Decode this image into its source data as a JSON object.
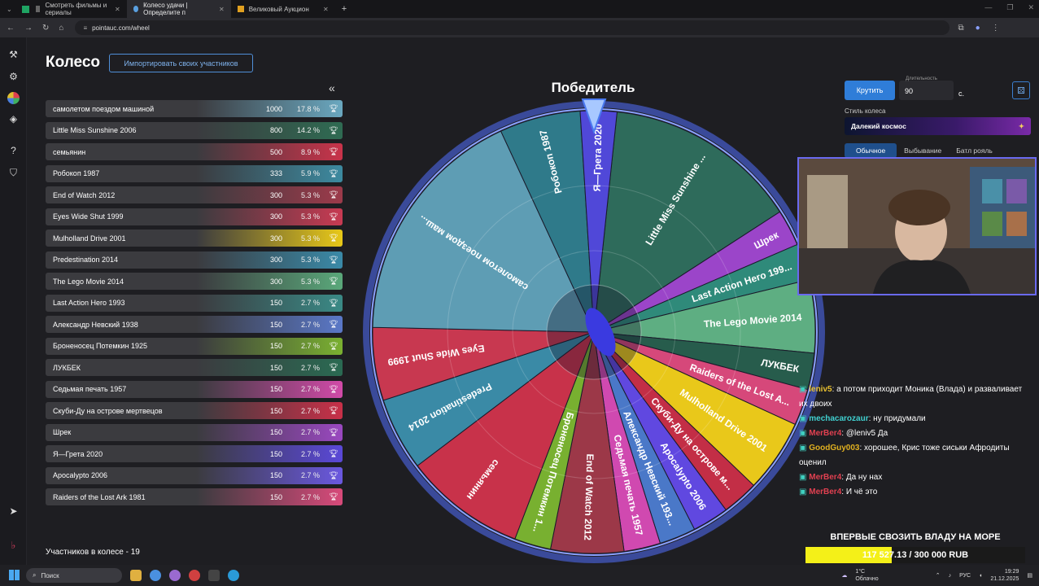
{
  "browser": {
    "tabs": [
      {
        "label": "Смотреть фильмы и сериалы"
      },
      {
        "label": "Колесо удачи | Определите п"
      },
      {
        "label": "Великовый Аукцион"
      }
    ],
    "url": "pointauc.com/wheel"
  },
  "page": {
    "title": "Колесо",
    "import_label": "Импортировать своих участников",
    "collapse_icon": "«",
    "participants_count": "Участников в колесе - 19"
  },
  "participants": [
    {
      "name": "самолетом поездом машиной",
      "amount": "1000",
      "pct": "17.8 %",
      "color": "#6aa8c0"
    },
    {
      "name": "Little Miss Sunshine 2006",
      "amount": "800",
      "pct": "14.2 %",
      "color": "#2f6b52"
    },
    {
      "name": "семьянин",
      "amount": "500",
      "pct": "8.9 %",
      "color": "#c9334a"
    },
    {
      "name": "Робокоп 1987",
      "amount": "333",
      "pct": "5.9 %",
      "color": "#3c8aa0"
    },
    {
      "name": "End of Watch 2012",
      "amount": "300",
      "pct": "5.3 %",
      "color": "#9c3a4a"
    },
    {
      "name": "Eyes Wide Shut 1999",
      "amount": "300",
      "pct": "5.3 %",
      "color": "#c83a52"
    },
    {
      "name": "Mulholland Drive 2001",
      "amount": "300",
      "pct": "5.3 %",
      "color": "#e8c818"
    },
    {
      "name": "Predestination 2014",
      "amount": "300",
      "pct": "5.3 %",
      "color": "#3a8aa8"
    },
    {
      "name": "The Lego Movie 2014",
      "amount": "300",
      "pct": "5.3 %",
      "color": "#5aa87a"
    },
    {
      "name": "Last Action Hero 1993",
      "amount": "150",
      "pct": "2.7 %",
      "color": "#3a8a86"
    },
    {
      "name": "Александр Невский 1938",
      "amount": "150",
      "pct": "2.7 %",
      "color": "#5a78c8"
    },
    {
      "name": "Броненосец Потемкин 1925",
      "amount": "150",
      "pct": "2.7 %",
      "color": "#7ab030"
    },
    {
      "name": "ЛУКБЕК",
      "amount": "150",
      "pct": "2.7 %",
      "color": "#2a6a52"
    },
    {
      "name": "Седьмая печать 1957",
      "amount": "150",
      "pct": "2.7 %",
      "color": "#d24aa8"
    },
    {
      "name": "Скуби-Ду на острове мертвецов",
      "amount": "150",
      "pct": "2.7 %",
      "color": "#c83048"
    },
    {
      "name": "Шрек",
      "amount": "150",
      "pct": "2.7 %",
      "color": "#9a48c0"
    },
    {
      "name": "Я—Грета 2020",
      "amount": "150",
      "pct": "2.7 %",
      "color": "#5a48d8"
    },
    {
      "name": "Apocalypto 2006",
      "amount": "150",
      "pct": "2.7 %",
      "color": "#6a58e0"
    },
    {
      "name": "Raiders of the Lost Ark 1981",
      "amount": "150",
      "pct": "2.7 %",
      "color": "#d84a7a"
    }
  ],
  "wheel": {
    "title": "Победитель",
    "slices": [
      {
        "label": "Little Miss Sunshine ...",
        "color": "#2e6b5b"
      },
      {
        "label": "Шрек",
        "color": "#9b45c9"
      },
      {
        "label": "Last Action Hero 199...",
        "color": "#2f8a7a"
      },
      {
        "label": "The Lego Movie 2014",
        "color": "#5eae82"
      },
      {
        "label": "ЛУКБЕК",
        "color": "#275c4c"
      },
      {
        "label": "Raiders of the Lost A...",
        "color": "#d6487a"
      },
      {
        "label": "Mulholland Drive 2001",
        "color": "#e9c81a"
      },
      {
        "label": "Скуби-Ду на острове м...",
        "color": "#c32e46"
      },
      {
        "label": "Apocalypto 2006",
        "color": "#6048e0"
      },
      {
        "label": "Александр Невский 193...",
        "color": "#4a78c8"
      },
      {
        "label": "Седьмая печать 1957",
        "color": "#d049b0"
      },
      {
        "label": "End of Watch 2012",
        "color": "#9c3848"
      },
      {
        "label": "Броненосец Потемкин 1...",
        "color": "#78b030"
      },
      {
        "label": "семьянин",
        "color": "#c8324a"
      },
      {
        "label": "Predestination 2014",
        "color": "#3a8aa6"
      },
      {
        "label": "Eyes Wide Shut 1999",
        "color": "#c83850"
      },
      {
        "label": "самолетом поездом маш...",
        "color": "#5e9db4"
      },
      {
        "label": "Робокоп 1987",
        "color": "#2f7a8a"
      },
      {
        "label": "Я—Грета 2020",
        "color": "#5048d8"
      }
    ]
  },
  "controls": {
    "spin_label": "Крутить",
    "duration_label": "Длительность",
    "duration_value": "90",
    "seconds": "с.",
    "style_label": "Стиль колеса",
    "style_value": "Далекий космос",
    "modes": [
      "Обычное",
      "Выбывание",
      "Батл рояль"
    ]
  },
  "chat": [
    {
      "user": "leniv5",
      "color": "#e8c030",
      "text": ": а потом приходит Моника (Влада) и разваливает их двоих"
    },
    {
      "user": "mechacarozaur",
      "color": "#40d0d0",
      "text": ": ну придумали"
    },
    {
      "user": "MerBer4",
      "color": "#e04050",
      "text": ": @leniv5 Да"
    },
    {
      "user": "GoodGuy003",
      "color": "#e0b020",
      "text": ": хорошее, Крис тоже сиськи Афродиты оценил"
    },
    {
      "user": "MerBer4",
      "color": "#e04050",
      "text": ": Да ну нах"
    },
    {
      "user": "MerBer4",
      "color": "#e04050",
      "text": ": И чё это"
    }
  ],
  "goal": {
    "title": "ВПЕРВЫЕ СВОЗИТЬ ВЛАДУ НА МОРЕ",
    "progress_text": "117 527.13 / 300 000 RUB",
    "progress_fraction": 0.392
  },
  "taskbar": {
    "search": "Поиск",
    "weather_temp": "1°C",
    "weather_text": "Облачно",
    "lang": "РУС",
    "time": "19:29",
    "date": "21.12.2025"
  }
}
